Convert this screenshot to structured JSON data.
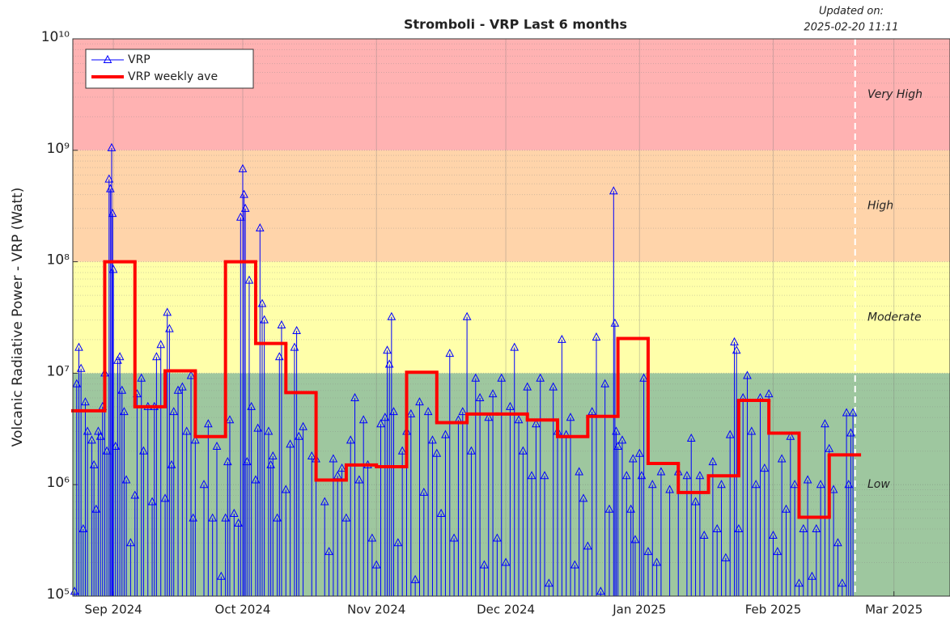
{
  "chart_data": {
    "type": "line",
    "title": "Stromboli - VRP Last 6 months",
    "updated_label": "Updated on:",
    "updated_time": "2025-02-20 11:11",
    "updated_x": 203,
    "ylabel": "Volcanic Radiative Power - VRP (Watt)",
    "log_y": true,
    "grid": true,
    "legend": "upper left",
    "xlim": [
      21.6,
      225
    ],
    "xticks": [
      {
        "value": 31,
        "label": "Sep 2024"
      },
      {
        "value": 61,
        "label": "Oct 2024"
      },
      {
        "value": 92,
        "label": "Nov 2024"
      },
      {
        "value": 122,
        "label": "Dec 2024"
      },
      {
        "value": 153,
        "label": "Jan 2025"
      },
      {
        "value": 184,
        "label": "Feb 2025"
      },
      {
        "value": 212,
        "label": "Mar 2025"
      }
    ],
    "ylim": [
      100000,
      10000000000
    ],
    "yticks": [
      {
        "value": 100000,
        "label": "10⁵"
      },
      {
        "value": 1000000,
        "label": "10⁶"
      },
      {
        "value": 10000000,
        "label": "10⁷"
      },
      {
        "value": 100000000,
        "label": "10⁸"
      },
      {
        "value": 1000000000,
        "label": "10⁹"
      },
      {
        "value": 10000000000,
        "label": "10¹⁰"
      }
    ],
    "zones": [
      {
        "label": "Low",
        "from": 100000,
        "to": 10000000,
        "color": "#9ec79f"
      },
      {
        "label": "Moderate",
        "from": 10000000,
        "to": 100000000,
        "color": "#ffffaa"
      },
      {
        "label": "High",
        "from": 100000000,
        "to": 1000000000,
        "color": "#ffd4aa"
      },
      {
        "label": "Very High",
        "from": 1000000000,
        "to": 10000000000,
        "color": "#ffb2b2"
      }
    ],
    "series": [
      {
        "name": "VRP",
        "type": "stem",
        "color": "#0000ff",
        "x": [
          22,
          22.5,
          23,
          23.5,
          24,
          24.5,
          25,
          26,
          26.5,
          27,
          27.5,
          28,
          28.5,
          29,
          29.5,
          30,
          30.3,
          30.6,
          30.8,
          31,
          31.5,
          32,
          32.5,
          33,
          33.5,
          34,
          35,
          36,
          36.5,
          37.5,
          38,
          39,
          40,
          40.5,
          41,
          42,
          43,
          43.5,
          44,
          44.5,
          45,
          46,
          47,
          48,
          49,
          49.5,
          50,
          52,
          53,
          54,
          55,
          56,
          57,
          57.5,
          58,
          59,
          60,
          60.5,
          61,
          61.3,
          61.6,
          62,
          62.5,
          63,
          64,
          64.5,
          65,
          65.5,
          66,
          67,
          67.5,
          68,
          69,
          69.5,
          70,
          71,
          72,
          73,
          73.5,
          74,
          75,
          77,
          78,
          80,
          81,
          82,
          83,
          84,
          85,
          86,
          87,
          88,
          89,
          90,
          91,
          92,
          93,
          94,
          94.5,
          95,
          95.5,
          96,
          97,
          98,
          99,
          100,
          101,
          102,
          103,
          104,
          105,
          106,
          107,
          108,
          109,
          110,
          111,
          112,
          113,
          114,
          115,
          116,
          117,
          118,
          119,
          120,
          121,
          122,
          123,
          124,
          125,
          126,
          127,
          128,
          129,
          130,
          131,
          132,
          133,
          134,
          135,
          136,
          137,
          138,
          139,
          140,
          141,
          142,
          143,
          144,
          145,
          146,
          147,
          147.3,
          147.6,
          148,
          149,
          150,
          151,
          151.5,
          152,
          153,
          153.5,
          154,
          155,
          156,
          157,
          158,
          160,
          162,
          164,
          165,
          166,
          167,
          168,
          170,
          171,
          172,
          173,
          174,
          175,
          175.5,
          176,
          177,
          178,
          179,
          180,
          181,
          182,
          183,
          184,
          185,
          186,
          187,
          188,
          189,
          190,
          191,
          192,
          193,
          194,
          195,
          196,
          197,
          198,
          199,
          200,
          201,
          201.5,
          202,
          202.5
        ],
        "values": [
          110000,
          8000000,
          17000000,
          11000000,
          400000,
          5500000,
          3000000,
          2500000,
          1500000,
          600000,
          3000000,
          2700000,
          5000000,
          10000000,
          2000000,
          550000000,
          450000000,
          1050000000,
          270000000,
          85000000,
          2200000,
          13000000,
          14000000,
          7000000,
          4500000,
          1100000,
          300000,
          800000,
          6500000,
          9000000,
          2000000,
          5000000,
          700000,
          5000000,
          14000000,
          18000000,
          750000,
          35000000,
          25000000,
          1500000,
          4500000,
          7000000,
          7500000,
          3000000,
          9500000,
          500000,
          2500000,
          1000000,
          3500000,
          500000,
          2200000,
          150000,
          500000,
          1600000,
          3800000,
          550000,
          450000,
          250000000,
          680000000,
          400000000,
          300000000,
          1600000,
          68000000,
          5000000,
          1100000,
          3200000,
          200000000,
          42000000,
          30000000,
          3000000,
          1500000,
          1800000,
          500000,
          14000000,
          27000000,
          900000,
          2300000,
          17000000,
          24000000,
          2700000,
          3300000,
          1800000,
          1700000,
          700000,
          250000,
          1700000,
          1200000,
          1400000,
          500000,
          2500000,
          6000000,
          1100000,
          3800000,
          1500000,
          330000,
          190000,
          3500000,
          4000000,
          16000000,
          12000000,
          32000000,
          4500000,
          300000,
          2000000,
          3000000,
          4300000,
          140000,
          5500000,
          850000,
          4500000,
          2500000,
          1900000,
          550000,
          2800000,
          15000000,
          330000,
          3800000,
          4500000,
          32000000,
          2000000,
          9000000,
          6000000,
          190000,
          4000000,
          6500000,
          330000,
          9000000,
          200000,
          5000000,
          17000000,
          3800000,
          2000000,
          7500000,
          1200000,
          3500000,
          9000000,
          1200000,
          130000,
          7500000,
          3000000,
          20000000,
          2800000,
          4000000,
          190000,
          1300000,
          750000,
          280000,
          4500000,
          21000000,
          110000,
          8000000,
          600000,
          430000000,
          28000000,
          3000000,
          2200000,
          2500000,
          1200000,
          600000,
          1700000,
          320000,
          1900000,
          1200000,
          9000000,
          250000,
          1000000,
          200000,
          1300000,
          900000,
          1300000,
          1200000,
          2600000,
          700000,
          1200000,
          350000,
          1600000,
          400000,
          1000000,
          220000,
          2800000,
          19000000,
          16000000,
          400000,
          6000000,
          9500000,
          3000000,
          1000000,
          6000000,
          1400000,
          6500000,
          350000,
          250000,
          1700000,
          600000,
          2700000,
          1000000,
          130000,
          400000,
          1100000,
          150000,
          400000,
          1000000,
          3500000,
          2100000,
          900000,
          300000,
          130000,
          4400000,
          1000000,
          2900000,
          4400000
        ]
      },
      {
        "name": "VRP weekly ave",
        "type": "step",
        "color": "#ff0000",
        "edges": [
          21.6,
          29,
          36,
          43,
          50,
          57,
          64,
          71,
          78,
          85,
          92,
          99,
          106,
          113,
          120,
          127,
          134,
          141,
          148,
          155,
          162,
          169,
          176,
          183,
          190,
          197,
          204
        ],
        "values": [
          4600000,
          100000000,
          5000000,
          10500000,
          2700000,
          100000000,
          18500000,
          6700000,
          1100000,
          1500000,
          1450000,
          10200000,
          3600000,
          4300000,
          4300000,
          3800000,
          2700000,
          4100000,
          20500000,
          1550000,
          850000,
          1200000,
          5700000,
          2900000,
          510000,
          1850000
        ]
      }
    ]
  }
}
